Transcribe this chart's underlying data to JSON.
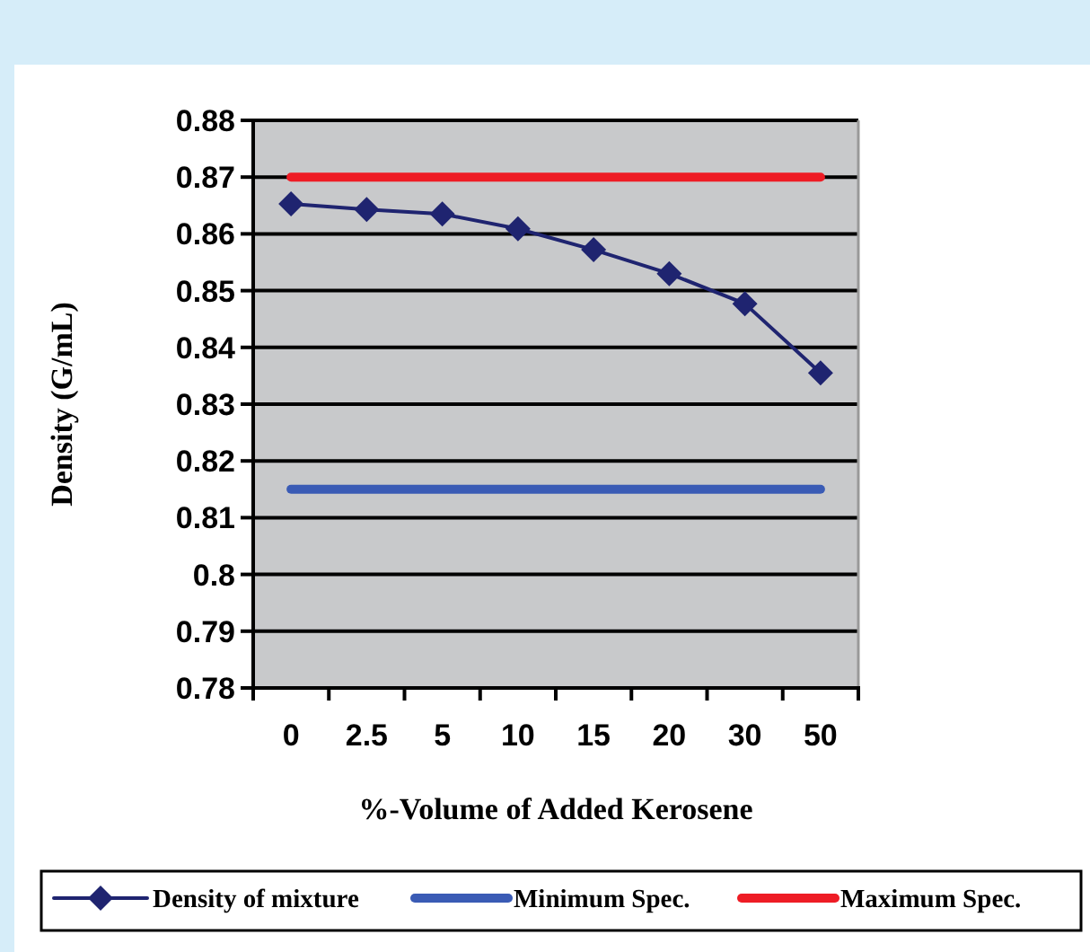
{
  "chart_data": {
    "type": "line",
    "xlabel": "%-Volume of Added Kerosene",
    "ylabel": "Density (G/mL)",
    "categories": [
      "0",
      "2.5",
      "5",
      "10",
      "15",
      "20",
      "30",
      "50"
    ],
    "series": [
      {
        "name": "Density of mixture",
        "color": "#1f2470",
        "marker": "diamond",
        "values": [
          0.8653,
          0.8643,
          0.8635,
          0.8609,
          0.8572,
          0.853,
          0.8477,
          0.8355
        ]
      },
      {
        "name": "Minimum Spec.",
        "color": "#3a5bb5",
        "marker": "none",
        "values": [
          0.815,
          0.815,
          0.815,
          0.815,
          0.815,
          0.815,
          0.815,
          0.815
        ]
      },
      {
        "name": "Maximum Spec.",
        "color": "#ee1c25",
        "marker": "none",
        "values": [
          0.87,
          0.87,
          0.87,
          0.87,
          0.87,
          0.87,
          0.87,
          0.87
        ]
      }
    ],
    "ylim": [
      0.78,
      0.88
    ],
    "yticks": [
      0.78,
      0.79,
      0.8,
      0.81,
      0.82,
      0.83,
      0.84,
      0.85,
      0.86,
      0.87,
      0.88
    ],
    "grid": "y",
    "legend": "bottom"
  }
}
